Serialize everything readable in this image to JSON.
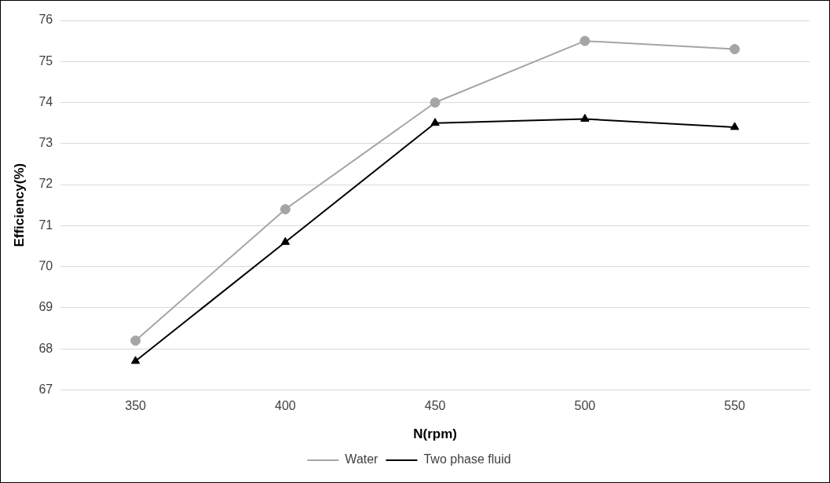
{
  "chart_data": {
    "type": "line",
    "xlabel": "N(rpm)",
    "ylabel": "Efficiency(%)",
    "categories": [
      "350",
      "400",
      "450",
      "500",
      "550"
    ],
    "series": [
      {
        "name": "Water",
        "color": "#a5a5a5",
        "marker": "circle",
        "values": [
          68.2,
          71.4,
          74.0,
          75.5,
          75.3
        ]
      },
      {
        "name": "Two phase fluid",
        "color": "#000000",
        "marker": "triangle",
        "values": [
          67.7,
          70.6,
          73.5,
          73.6,
          73.4
        ]
      }
    ],
    "ylim": [
      67,
      76
    ],
    "yticks": [
      67,
      68,
      69,
      70,
      71,
      72,
      73,
      74,
      75,
      76
    ],
    "grid": "y",
    "legend": "bottom",
    "line_style": "solid"
  }
}
